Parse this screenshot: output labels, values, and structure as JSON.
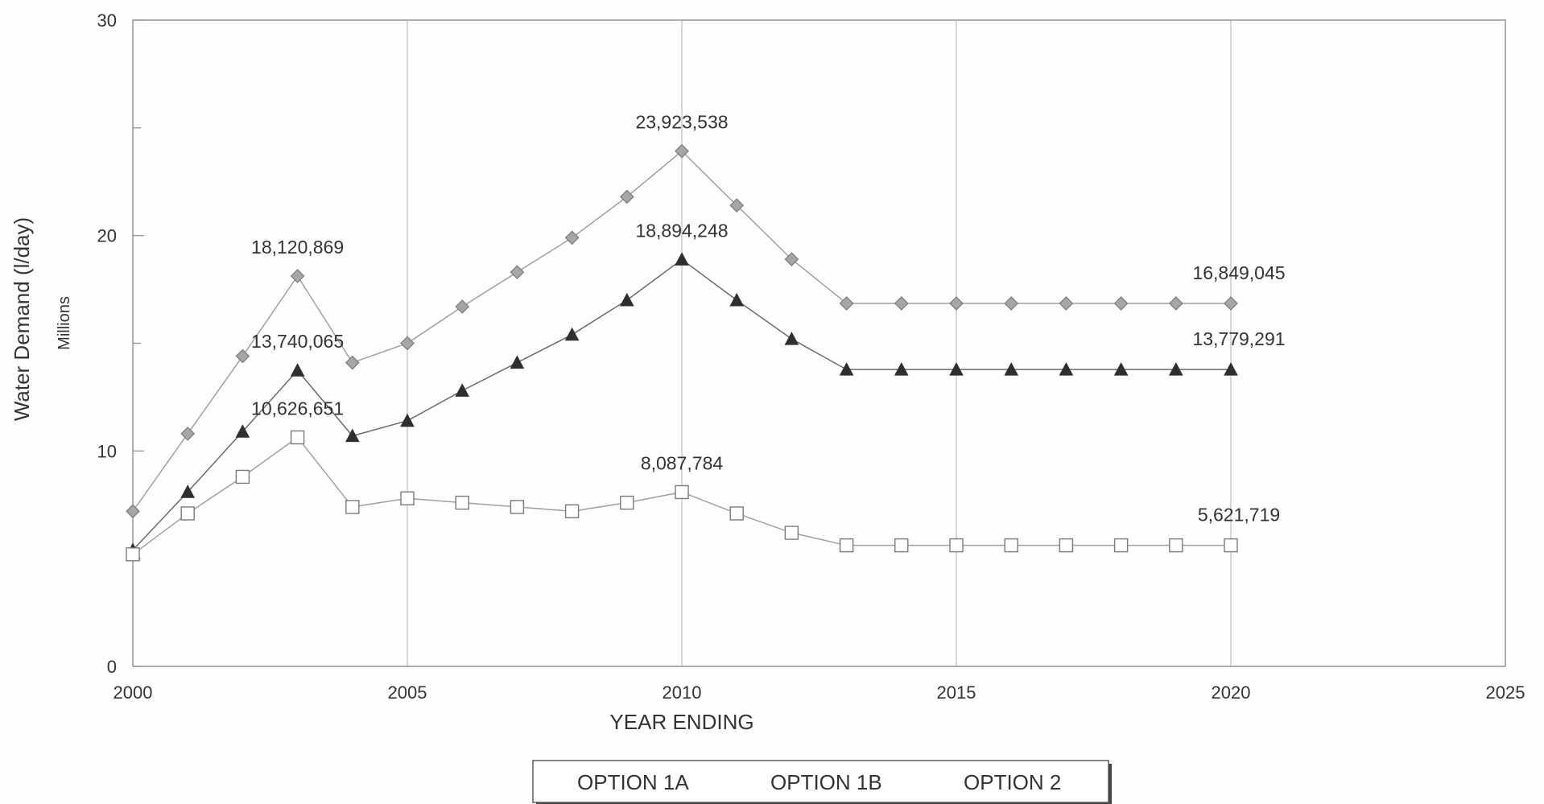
{
  "chart_data": {
    "type": "line",
    "xlabel": "YEAR ENDING",
    "ylabel": "Water Demand (l/day)",
    "ylabel_unit": "Millions",
    "xlim": [
      2000,
      2025
    ],
    "ylim": [
      0,
      30
    ],
    "x_ticks": [
      2000,
      2005,
      2010,
      2015,
      2020,
      2025
    ],
    "y_ticks": [
      0,
      10,
      20,
      30
    ],
    "grid": {
      "x": true,
      "y": false
    },
    "legend_position": "bottom-center",
    "series": [
      {
        "name": "OPTION 1A",
        "marker": "diamond",
        "color": "#9a9a9a",
        "x": [
          2000,
          2001,
          2002,
          2003,
          2004,
          2005,
          2006,
          2007,
          2008,
          2009,
          2010,
          2011,
          2012,
          2013,
          2014,
          2015,
          2016,
          2017,
          2018,
          2019,
          2020
        ],
        "y": [
          7.2,
          10.8,
          14.4,
          18.12,
          14.1,
          15.0,
          16.7,
          18.3,
          19.9,
          21.8,
          23.92,
          21.4,
          18.9,
          16.85,
          16.85,
          16.85,
          16.85,
          16.85,
          16.85,
          16.85,
          16.85
        ]
      },
      {
        "name": "OPTION 1B",
        "marker": "triangle",
        "color": "#333333",
        "x": [
          2000,
          2001,
          2002,
          2003,
          2004,
          2005,
          2006,
          2007,
          2008,
          2009,
          2010,
          2011,
          2012,
          2013,
          2014,
          2015,
          2016,
          2017,
          2018,
          2019,
          2020
        ],
        "y": [
          5.4,
          8.1,
          10.9,
          13.74,
          10.7,
          11.4,
          12.8,
          14.1,
          15.4,
          17.0,
          18.89,
          17.0,
          15.2,
          13.78,
          13.78,
          13.78,
          13.78,
          13.78,
          13.78,
          13.78,
          13.78
        ]
      },
      {
        "name": "OPTION 2",
        "marker": "square",
        "color": "#8a8a8a",
        "x": [
          2000,
          2001,
          2002,
          2003,
          2004,
          2005,
          2006,
          2007,
          2008,
          2009,
          2010,
          2011,
          2012,
          2013,
          2014,
          2015,
          2016,
          2017,
          2018,
          2019,
          2020
        ],
        "y": [
          5.2,
          7.1,
          8.8,
          10.63,
          7.4,
          7.8,
          7.6,
          7.4,
          7.2,
          7.6,
          8.09,
          7.1,
          6.2,
          5.62,
          5.62,
          5.62,
          5.62,
          5.62,
          5.62,
          5.62,
          5.62
        ]
      }
    ],
    "annotations": [
      {
        "text": "18,120,869",
        "x": 2003,
        "y": 18.12,
        "series": 0
      },
      {
        "text": "23,923,538",
        "x": 2010,
        "y": 23.92,
        "series": 0
      },
      {
        "text": "16,849,045",
        "x": 2020,
        "y": 16.85,
        "series": 0
      },
      {
        "text": "13,740,065",
        "x": 2003,
        "y": 13.74,
        "series": 1
      },
      {
        "text": "18,894,248",
        "x": 2010,
        "y": 18.89,
        "series": 1
      },
      {
        "text": "13,779,291",
        "x": 2020,
        "y": 13.78,
        "series": 1
      },
      {
        "text": "10,626,651",
        "x": 2003,
        "y": 10.63,
        "series": 2
      },
      {
        "text": "8,087,784",
        "x": 2010,
        "y": 8.09,
        "series": 2
      },
      {
        "text": "5,621,719",
        "x": 2020,
        "y": 5.62,
        "series": 2
      }
    ]
  }
}
